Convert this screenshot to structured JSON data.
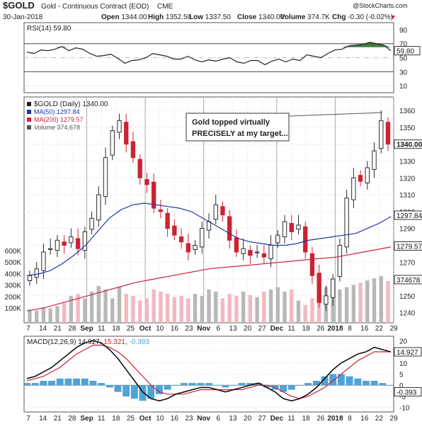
{
  "header": {
    "symbol": "$GOLD",
    "name": "Gold - Continuous Contract (EOD)",
    "exchange": "CME",
    "date": "30-Jan-2018",
    "ohlc": [
      {
        "label": "Open",
        "value": "1344.00"
      },
      {
        "label": "High",
        "value": "1352.50"
      },
      {
        "label": "Low",
        "value": "1337.50"
      },
      {
        "label": "Close",
        "value": "1340.00"
      },
      {
        "label": "Volume",
        "value": "374.7K"
      },
      {
        "label": "Chg",
        "value": "-0.30 (-0.02%)"
      }
    ],
    "watermark": "@StockCharts.com"
  },
  "colors": {
    "up": "#2b2b2b",
    "down": "#cc2233",
    "ma50": "#2233aa",
    "ma200": "#cc2244",
    "volume_up": "#b8b8b8",
    "volume_down": "#f2b8c0",
    "macd_hist": "#4fa3d6",
    "rsi_fill": "#2a6a2a"
  },
  "rsi_panel": {
    "legend": "RSI(14) 59.80",
    "last_label": "59.80",
    "axis_labels": [
      "90",
      "70",
      "50",
      "30",
      "10"
    ]
  },
  "price_panel": {
    "legend": [
      {
        "text": "$GOLD (Daily) 1340.00",
        "color": "#222222"
      },
      {
        "text": "MA(50) 1297.84",
        "color": "#2233aa"
      },
      {
        "text": "MA(200) 1279.57",
        "color": "#cc2244"
      },
      {
        "text": "Volume 374,678",
        "color": "#555555"
      }
    ],
    "annotation_line1": "Gold topped virtually",
    "annotation_line2": "PRECISELY at my target...",
    "price_labels": [
      "1360",
      "1350",
      "1340",
      "1330",
      "1320",
      "1310",
      "1300",
      "1290",
      "1280",
      "1270",
      "1260",
      "1250",
      "1240"
    ],
    "last_price_label": "1340.00",
    "ma50_label": "1297.84",
    "ma200_label": "1279.57",
    "volume_label": "374678",
    "volume_axis_labels": [
      "600K",
      "500K",
      "400K",
      "300K",
      "200K",
      "100K"
    ]
  },
  "macd_panel": {
    "legend_prefix": "MACD(12,26,9)",
    "legend_macd": "14.927",
    "legend_signal": "15.321",
    "legend_hist": "-0.393",
    "axis_labels": [
      "20",
      "15",
      "10",
      "5",
      "0",
      "-5",
      "-10"
    ],
    "macd_label": "14.927",
    "hist_label": "-0.393"
  },
  "x_axis": {
    "labels": [
      {
        "text": "7",
        "bold": false
      },
      {
        "text": "14",
        "bold": false
      },
      {
        "text": "21",
        "bold": false
      },
      {
        "text": "28",
        "bold": false
      },
      {
        "text": "Sep",
        "bold": true
      },
      {
        "text": "11",
        "bold": false
      },
      {
        "text": "18",
        "bold": false
      },
      {
        "text": "25",
        "bold": false
      },
      {
        "text": "Oct",
        "bold": true
      },
      {
        "text": "10",
        "bold": false
      },
      {
        "text": "16",
        "bold": false
      },
      {
        "text": "23",
        "bold": false
      },
      {
        "text": "Nov",
        "bold": true
      },
      {
        "text": "6",
        "bold": false
      },
      {
        "text": "13",
        "bold": false
      },
      {
        "text": "20",
        "bold": false
      },
      {
        "text": "27",
        "bold": false
      },
      {
        "text": "Dec",
        "bold": true
      },
      {
        "text": "11",
        "bold": false
      },
      {
        "text": "18",
        "bold": false
      },
      {
        "text": "26",
        "bold": false
      },
      {
        "text": "2018",
        "bold": true
      },
      {
        "text": "8",
        "bold": false
      },
      {
        "text": "16",
        "bold": false
      },
      {
        "text": "22",
        "bold": false
      },
      {
        "text": "29",
        "bold": false
      }
    ]
  },
  "chart_data": [
    {
      "type": "line",
      "title": "RSI(14)",
      "ylim": [
        0,
        100
      ],
      "reference_lines": [
        70,
        30
      ],
      "series": [
        {
          "name": "RSI(14)",
          "values": [
            58,
            56,
            61,
            60,
            62,
            66,
            60,
            64,
            62,
            56,
            52,
            53,
            55,
            49,
            42,
            46,
            47,
            50,
            56,
            54,
            52,
            48,
            48,
            52,
            47,
            44,
            47,
            45,
            48,
            50,
            44,
            42,
            46,
            46,
            40,
            45,
            48,
            44,
            48,
            46,
            54,
            52,
            50,
            56,
            61,
            62,
            67,
            68,
            69,
            72,
            70,
            68,
            60
          ]
        }
      ]
    },
    {
      "type": "line",
      "title": "$GOLD (Daily) 1340.00",
      "ylabel": "",
      "ylim": [
        1234,
        1368
      ],
      "series": [
        {
          "name": "$GOLD",
          "values": [
            1262,
            1266,
            1276,
            1278,
            1283,
            1280,
            1285,
            1278,
            1288,
            1296,
            1310,
            1332,
            1348,
            1354,
            1340,
            1332,
            1320,
            1316,
            1302,
            1300,
            1290,
            1286,
            1282,
            1276,
            1280,
            1290,
            1294,
            1304,
            1298,
            1283,
            1276,
            1278,
            1274,
            1276,
            1273,
            1280,
            1286,
            1294,
            1288,
            1292,
            1276,
            1262,
            1246,
            1250,
            1260,
            1280,
            1308,
            1320,
            1318,
            1326,
            1336,
            1354,
            1340
          ]
        },
        {
          "name": "MA(50)",
          "values": [
            1262,
            1263,
            1265,
            1269,
            1274,
            1280,
            1288,
            1296,
            1301,
            1304,
            1305,
            1304,
            1303,
            1302,
            1300,
            1296,
            1292,
            1288,
            1284,
            1282,
            1281,
            1280,
            1280,
            1281,
            1283,
            1284,
            1285,
            1286,
            1287,
            1290,
            1293,
            1297
          ]
        },
        {
          "name": "MA(200)",
          "values": [
            1241,
            1243,
            1246,
            1249,
            1252,
            1255,
            1258,
            1260,
            1262,
            1264,
            1266,
            1267,
            1268,
            1269,
            1270,
            1271,
            1272,
            1273,
            1275,
            1277,
            1279
          ]
        },
        {
          "name": "Volume",
          "values": [
            120,
            110,
            140,
            130,
            150,
            180,
            240,
            260,
            220,
            280,
            330,
            300,
            220,
            320,
            260,
            240,
            200,
            220,
            300,
            280,
            260,
            230,
            240,
            220,
            260,
            240,
            300,
            280,
            220,
            260,
            240,
            280,
            250,
            230,
            280,
            300,
            320,
            280,
            300,
            200,
            160,
            220,
            180,
            320,
            340,
            300,
            320,
            340,
            360,
            380,
            400,
            420,
            375
          ]
        }
      ]
    },
    {
      "type": "line",
      "title": "MACD(12,26,9)",
      "ylim": [
        -12,
        22
      ],
      "series": [
        {
          "name": "MACD",
          "values": [
            3,
            4,
            6,
            8,
            11,
            14,
            17,
            19,
            20,
            19,
            16,
            12,
            7,
            2,
            -3,
            -6,
            -7,
            -6,
            -4,
            -3,
            -2,
            -1,
            -1,
            -2,
            -3,
            -2,
            -1,
            0,
            1,
            -1,
            -3,
            -6,
            -7,
            -6,
            -4,
            -1,
            3,
            7,
            10,
            12,
            14,
            15,
            17,
            16,
            15
          ]
        },
        {
          "name": "Signal",
          "values": [
            2,
            3,
            4,
            6,
            8,
            11,
            14,
            16,
            18,
            18,
            17,
            15,
            12,
            8,
            4,
            0,
            -3,
            -4,
            -4,
            -4,
            -3,
            -2,
            -2,
            -2,
            -2,
            -2,
            -2,
            -1,
            0,
            0,
            -1,
            -3,
            -5,
            -6,
            -5,
            -3,
            -1,
            2,
            5,
            8,
            11,
            13,
            15,
            15,
            15
          ]
        },
        {
          "name": "Histogram",
          "values": [
            1,
            1,
            2,
            2,
            3,
            3,
            3,
            3,
            2,
            1,
            -1,
            -3,
            -5,
            -6,
            -7,
            -6,
            -4,
            -2,
            0,
            1,
            1,
            1,
            1,
            0,
            -1,
            0,
            1,
            1,
            1,
            -1,
            -2,
            -3,
            -2,
            0,
            1,
            2,
            4,
            5,
            5,
            4,
            3,
            2,
            2,
            1,
            0
          ]
        }
      ]
    }
  ]
}
